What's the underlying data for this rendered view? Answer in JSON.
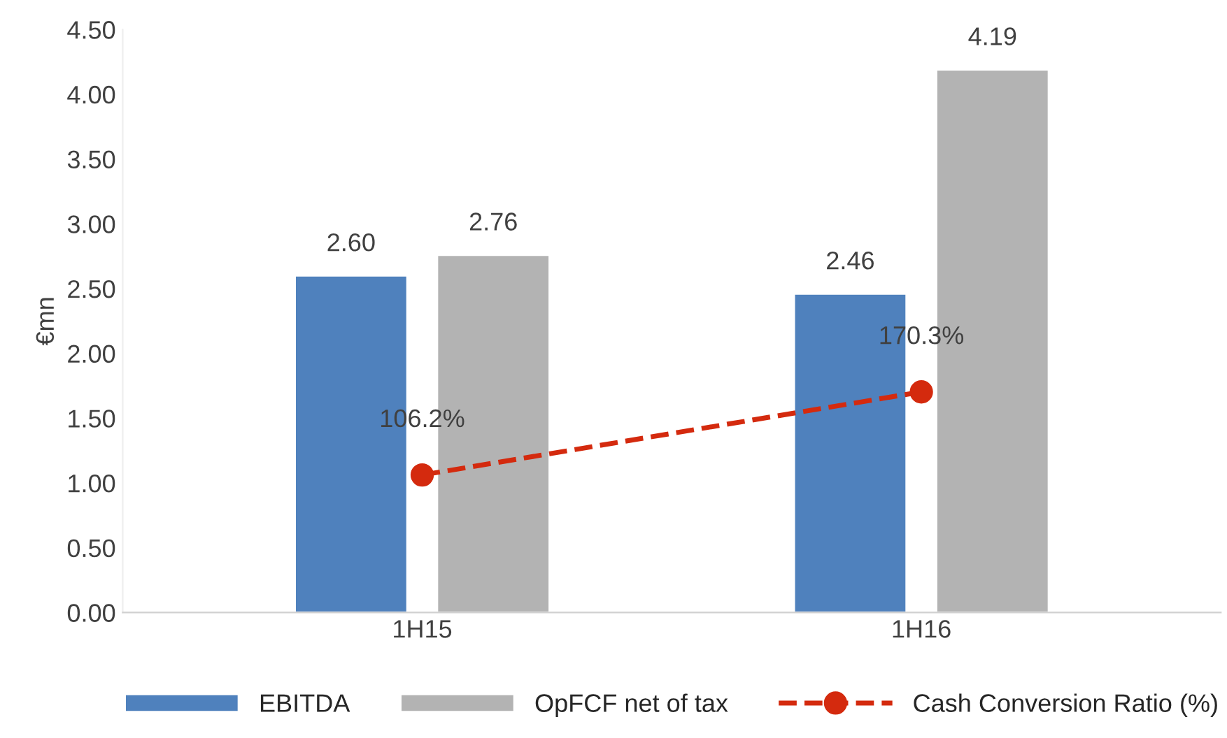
{
  "chart_data": {
    "type": "bar",
    "ylabel": "€mn",
    "categories": [
      "1H15",
      "1H16"
    ],
    "series": [
      {
        "name": "EBITDA",
        "color": "#4f81bd",
        "values": [
          2.6,
          2.46
        ],
        "value_labels": [
          "2.60",
          "2.46"
        ]
      },
      {
        "name": "OpFCF net of tax",
        "color": "#b3b3b3",
        "values": [
          2.76,
          4.19
        ],
        "value_labels": [
          "2.76",
          "4.19"
        ]
      },
      {
        "name": "Cash Conversion Ratio (%)",
        "type": "line",
        "color": "#d42a0e",
        "values": [
          1.062,
          1.703
        ],
        "value_labels": [
          "106.2%",
          "170.3%"
        ],
        "marker": "circle",
        "line_style": "dashed"
      }
    ],
    "ylim": [
      0,
      4.5
    ],
    "yticks": [
      "0.00",
      "0.50",
      "1.00",
      "1.50",
      "2.00",
      "2.50",
      "3.00",
      "3.50",
      "4.00",
      "4.50"
    ],
    "grid": false,
    "legend": "bottom"
  }
}
